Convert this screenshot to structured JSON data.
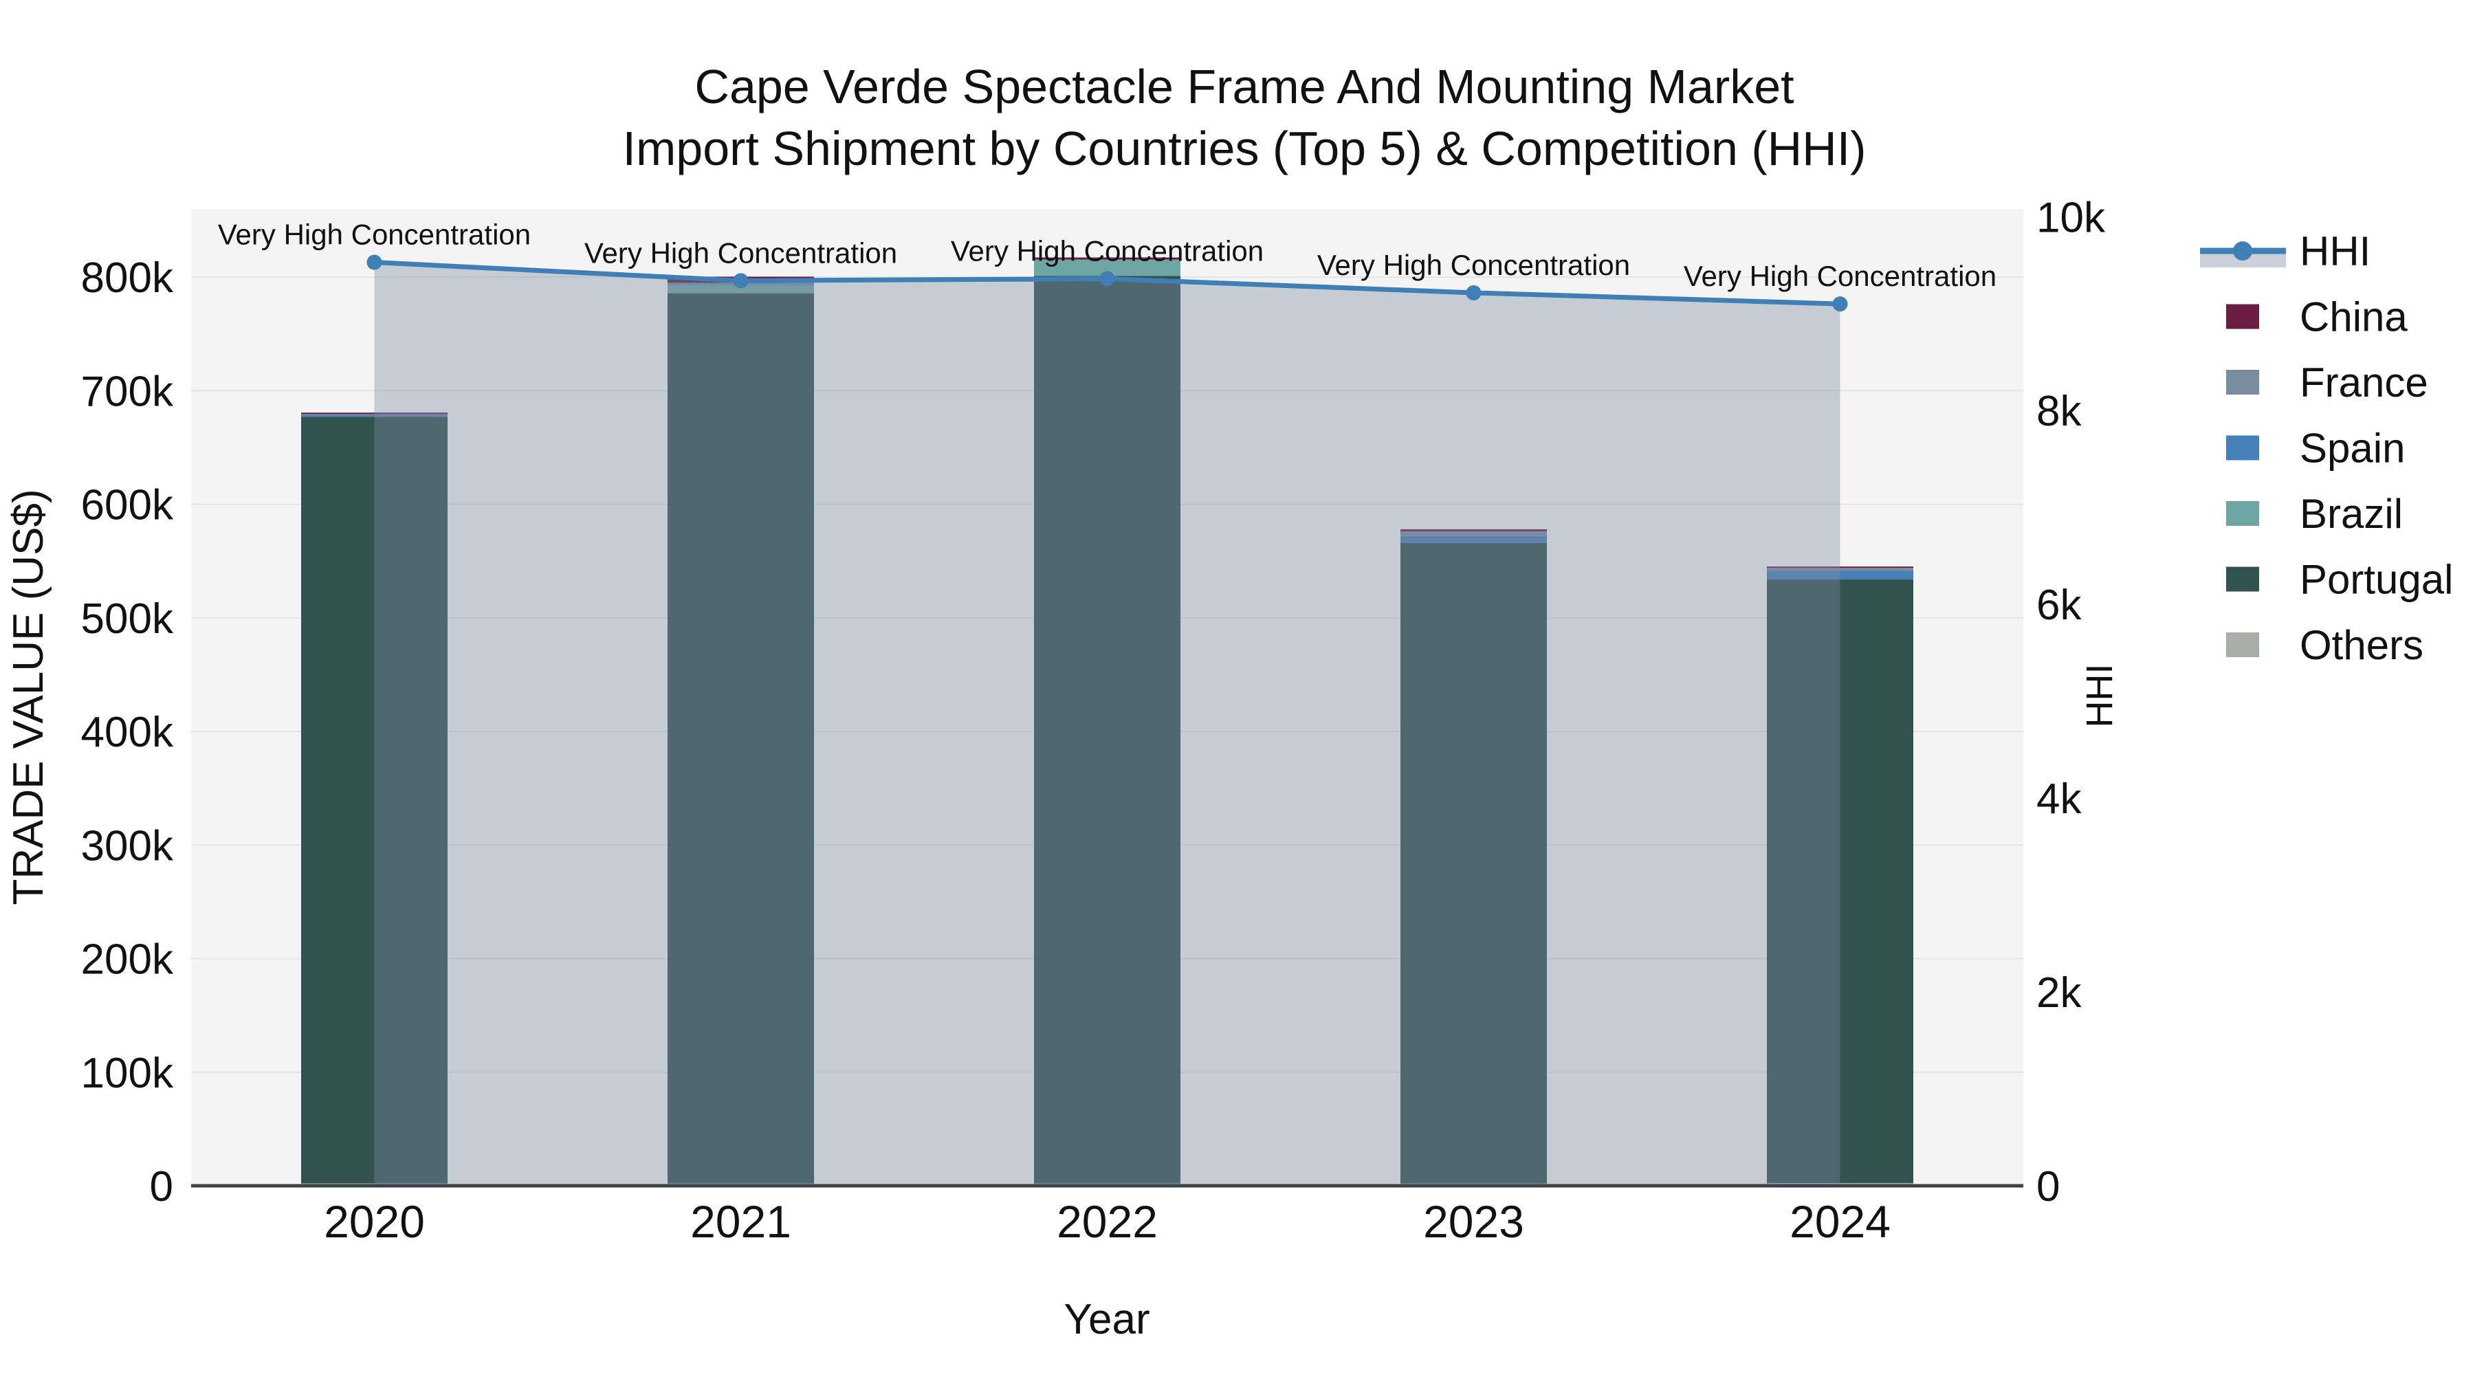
{
  "title": {
    "line1": "Cape Verde Spectacle Frame And Mounting Market",
    "line2": "Import Shipment by Countries (Top 5) & Competition (HHI)"
  },
  "axes": {
    "x": {
      "title": "Year"
    },
    "y_left": {
      "title": "TRADE VALUE (US$)",
      "max": 860000,
      "ticks": [
        {
          "label": "0",
          "value": 0
        },
        {
          "label": "100k",
          "value": 100000
        },
        {
          "label": "200k",
          "value": 200000
        },
        {
          "label": "300k",
          "value": 300000
        },
        {
          "label": "400k",
          "value": 400000
        },
        {
          "label": "500k",
          "value": 500000
        },
        {
          "label": "600k",
          "value": 600000
        },
        {
          "label": "700k",
          "value": 700000
        },
        {
          "label": "800k",
          "value": 800000
        }
      ]
    },
    "y_right": {
      "title": "HHI",
      "max": 10080,
      "ticks": [
        {
          "label": "0",
          "value": 0
        },
        {
          "label": "2k",
          "value": 2000
        },
        {
          "label": "4k",
          "value": 4000
        },
        {
          "label": "6k",
          "value": 6000
        },
        {
          "label": "8k",
          "value": 8000
        },
        {
          "label": "10k",
          "value": 10000
        }
      ]
    }
  },
  "chart_data": {
    "type": "bar+line",
    "categories": [
      "2020",
      "2021",
      "2022",
      "2023",
      "2024"
    ],
    "bar_stack_order_bottom_to_top": [
      "Others",
      "Portugal",
      "Brazil",
      "Spain",
      "France",
      "China"
    ],
    "series": [
      {
        "name": "China",
        "type": "bar",
        "color": "#6B1C42",
        "values": [
          1300,
          5400,
          1800,
          1800,
          1200
        ]
      },
      {
        "name": "France",
        "type": "bar",
        "color": "#7A8CA0",
        "values": [
          500,
          1200,
          0,
          4200,
          2400
        ]
      },
      {
        "name": "Spain",
        "type": "bar",
        "color": "#4680B8",
        "values": [
          1800,
          800,
          0,
          6000,
          7800
        ]
      },
      {
        "name": "Brazil",
        "type": "bar",
        "color": "#6FA6A4",
        "values": [
          0,
          7200,
          14500,
          0,
          0
        ]
      },
      {
        "name": "Portugal",
        "type": "bar",
        "color": "#325250",
        "values": [
          675000,
          783800,
          799000,
          564000,
          531400
        ]
      },
      {
        "name": "Others",
        "type": "bar",
        "color": "#A8ADA9",
        "values": [
          2100,
          2000,
          2000,
          2000,
          2400
        ]
      }
    ],
    "line_series": {
      "name": "HHI",
      "color": "#3F7FB5",
      "fill_color": "rgba(125,140,160,0.38)",
      "values": [
        9530,
        9340,
        9360,
        9215,
        9100
      ]
    },
    "annotations": [
      "Very High Concentration",
      "Very High Concentration",
      "Very High Concentration",
      "Very High Concentration",
      "Very High Concentration"
    ],
    "legend_order": [
      "HHI",
      "China",
      "France",
      "Spain",
      "Brazil",
      "Portugal",
      "Others"
    ],
    "layout": {
      "plot_bg": "#F3F4F3",
      "grid_color": "#E3E5E4",
      "zeroline_color": "#3C4347",
      "legend_position": "right"
    }
  }
}
